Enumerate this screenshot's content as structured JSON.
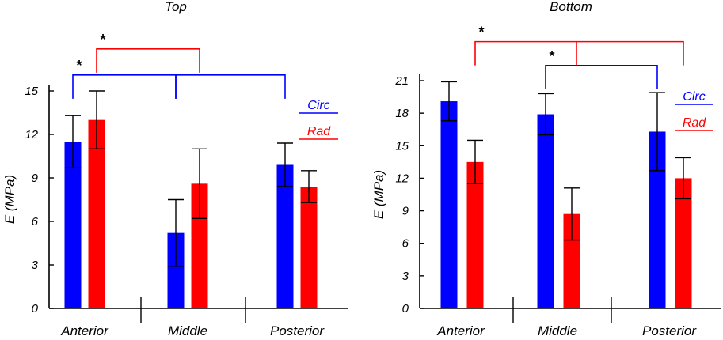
{
  "chart_data": [
    {
      "type": "bar",
      "title": "Top",
      "ylabel": "E (MPa)",
      "categories": [
        "Anterior",
        "Middle",
        "Posterior"
      ],
      "ylim": [
        0,
        15
      ],
      "yticks": [
        0,
        3,
        6,
        9,
        12,
        15
      ],
      "series": [
        {
          "name": "Circ",
          "color": "#0000ff",
          "values": [
            11.5,
            5.2,
            9.9
          ],
          "errors": [
            1.8,
            2.3,
            1.5
          ]
        },
        {
          "name": "Rad",
          "color": "#ff0000",
          "values": [
            13.0,
            8.6,
            8.4
          ],
          "errors": [
            2.0,
            2.4,
            1.1
          ]
        }
      ],
      "significance": [
        {
          "label": "*",
          "series": "Circ",
          "from": "Anterior",
          "to": "Posterior",
          "mid": "Middle",
          "color": "#0000ff",
          "level": 16.1
        },
        {
          "label": "*",
          "series": "Rad",
          "from": "Anterior",
          "to": "Middle",
          "color": "#ff0000",
          "level": 17.9
        }
      ]
    },
    {
      "type": "bar",
      "title": "Bottom",
      "ylabel": "E (MPa)",
      "categories": [
        "Anterior",
        "Middle",
        "Posterior"
      ],
      "ylim": [
        0,
        21
      ],
      "yticks": [
        0,
        3,
        6,
        9,
        12,
        15,
        18,
        21
      ],
      "series": [
        {
          "name": "Circ",
          "color": "#0000ff",
          "values": [
            19.1,
            17.9,
            16.3
          ],
          "errors": [
            1.8,
            1.9,
            3.6
          ]
        },
        {
          "name": "Rad",
          "color": "#ff0000",
          "values": [
            13.5,
            8.7,
            12.0
          ],
          "errors": [
            2.0,
            2.4,
            1.9
          ]
        }
      ],
      "significance": [
        {
          "label": "*",
          "series": "Circ",
          "from": "Middle",
          "to": "Posterior",
          "color": "#0000ff",
          "level": 22.4
        },
        {
          "label": "*",
          "series": "Rad",
          "from": "Anterior",
          "to": "Posterior",
          "color": "#ff0000",
          "level": 24.6
        }
      ]
    }
  ]
}
